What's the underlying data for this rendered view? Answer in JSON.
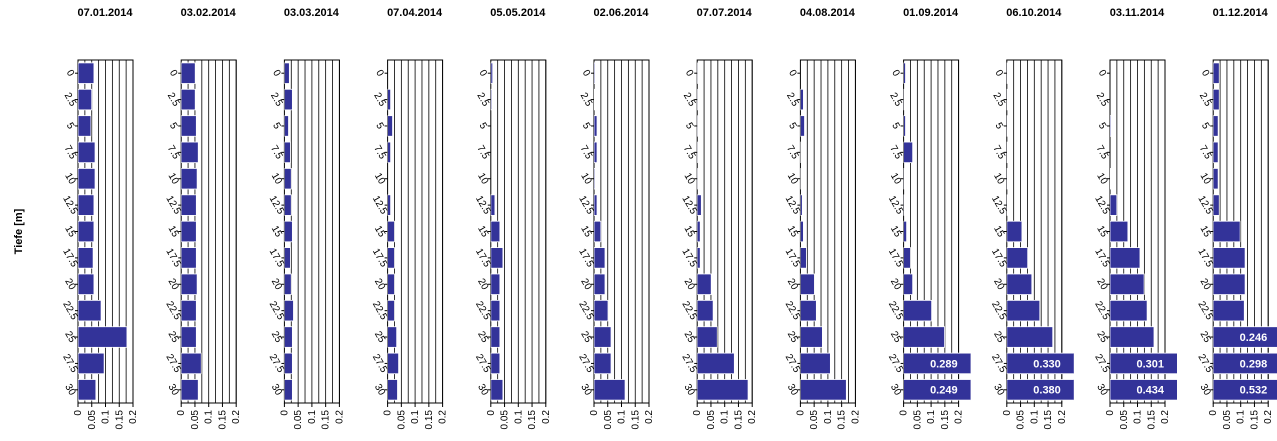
{
  "chart_data": [
    {
      "type": "hbar",
      "title": "07.01.2014",
      "y_label": "Tiefe [m]",
      "categories": [
        "0",
        "2.5",
        "5",
        "7.5",
        "10",
        "12.5",
        "15",
        "17.5",
        "20",
        "22.5",
        "25",
        "27.5",
        "30"
      ],
      "values": [
        0.058,
        0.05,
        0.047,
        0.062,
        0.062,
        0.058,
        0.058,
        0.055,
        0.058,
        0.084,
        0.178,
        0.095,
        0.065
      ],
      "value_labels": [
        null,
        null,
        null,
        null,
        null,
        null,
        null,
        null,
        null,
        null,
        null,
        null,
        null
      ],
      "color": "#333399",
      "xlim": [
        0,
        0.2
      ],
      "xticks": [
        0,
        0.05,
        0.1,
        0.15,
        0.2
      ],
      "xgrid": [
        0.025,
        0.05,
        0.075,
        0.1,
        0.125,
        0.15,
        0.175,
        0.2
      ]
    },
    {
      "type": "hbar",
      "title": "03.02.2014",
      "categories": [
        "0",
        "2.5",
        "5",
        "7.5",
        "10",
        "12.5",
        "15",
        "17.5",
        "20",
        "22.5",
        "25",
        "27.5",
        "30"
      ],
      "values": [
        0.051,
        0.051,
        0.055,
        0.062,
        0.058,
        0.055,
        0.055,
        0.055,
        0.058,
        0.055,
        0.055,
        0.073,
        0.062
      ],
      "value_labels": [
        null,
        null,
        null,
        null,
        null,
        null,
        null,
        null,
        null,
        null,
        null,
        null,
        null
      ],
      "color": "#333399",
      "xlim": [
        0,
        0.2
      ],
      "xticks": [
        0,
        0.05,
        0.1,
        0.15,
        0.2
      ],
      "xgrid": [
        0.025,
        0.05,
        0.075,
        0.1,
        0.125,
        0.15,
        0.175,
        0.2
      ]
    },
    {
      "type": "hbar",
      "title": "03.03.2014",
      "categories": [
        "0",
        "2.5",
        "5",
        "7.5",
        "10",
        "12.5",
        "15",
        "17.5",
        "20",
        "22.5",
        "25",
        "27.5",
        "30"
      ],
      "values": [
        0.018,
        0.029,
        0.015,
        0.022,
        0.025,
        0.025,
        0.029,
        0.022,
        0.025,
        0.033,
        0.029,
        0.029,
        0.029
      ],
      "value_labels": [
        null,
        null,
        null,
        null,
        null,
        null,
        null,
        null,
        null,
        null,
        null,
        null,
        null
      ],
      "color": "#333399",
      "xlim": [
        0,
        0.2
      ],
      "xticks": [
        0,
        0.05,
        0.1,
        0.15,
        0.2
      ],
      "xgrid": [
        0.025,
        0.05,
        0.075,
        0.1,
        0.125,
        0.15,
        0.175,
        0.2
      ]
    },
    {
      "type": "hbar",
      "title": "07.04.2014",
      "categories": [
        "0",
        "2.5",
        "5",
        "7.5",
        "10",
        "12.5",
        "15",
        "17.5",
        "20",
        "22.5",
        "25",
        "27.5",
        "30"
      ],
      "values": [
        0,
        0.011,
        0.018,
        0.011,
        0,
        0.011,
        0.025,
        0.025,
        0.025,
        0.025,
        0.033,
        0.04,
        0.036
      ],
      "value_labels": [
        null,
        null,
        null,
        null,
        null,
        null,
        null,
        null,
        null,
        null,
        null,
        null,
        null
      ],
      "color": "#333399",
      "xlim": [
        0,
        0.2
      ],
      "xticks": [
        0,
        0.05,
        0.1,
        0.15,
        0.2
      ],
      "xgrid": [
        0.025,
        0.05,
        0.075,
        0.1,
        0.125,
        0.15,
        0.175,
        0.2
      ]
    },
    {
      "type": "hbar",
      "title": "05.05.2014",
      "categories": [
        "0",
        "2.5",
        "5",
        "7.5",
        "10",
        "12.5",
        "15",
        "17.5",
        "20",
        "22.5",
        "25",
        "27.5",
        "30"
      ],
      "values": [
        0.007,
        0.004,
        0,
        0,
        0,
        0.015,
        0.033,
        0.044,
        0.033,
        0.033,
        0.033,
        0.033,
        0.044
      ],
      "value_labels": [
        null,
        null,
        null,
        null,
        null,
        null,
        null,
        null,
        null,
        null,
        null,
        null,
        null
      ],
      "color": "#333399",
      "xlim": [
        0,
        0.2
      ],
      "xticks": [
        0,
        0.05,
        0.1,
        0.15,
        0.2
      ],
      "xgrid": [
        0.025,
        0.05,
        0.075,
        0.1,
        0.125,
        0.15,
        0.175,
        0.2
      ]
    },
    {
      "type": "hbar",
      "title": "02.06.2014",
      "categories": [
        "0",
        "2.5",
        "5",
        "7.5",
        "10",
        "12.5",
        "15",
        "17.5",
        "20",
        "22.5",
        "25",
        "27.5",
        "30"
      ],
      "values": [
        0.004,
        0.002,
        0.011,
        0.011,
        0.004,
        0.011,
        0.025,
        0.04,
        0.04,
        0.051,
        0.062,
        0.062,
        0.113
      ],
      "value_labels": [
        null,
        null,
        null,
        null,
        null,
        null,
        null,
        null,
        null,
        null,
        null,
        null,
        null
      ],
      "color": "#333399",
      "xlim": [
        0,
        0.2
      ],
      "xticks": [
        0,
        0.05,
        0.1,
        0.15,
        0.2
      ],
      "xgrid": [
        0.025,
        0.05,
        0.075,
        0.1,
        0.125,
        0.15,
        0.175,
        0.2
      ]
    },
    {
      "type": "hbar",
      "title": "07.07.2014",
      "categories": [
        "0",
        "2.5",
        "5",
        "7.5",
        "10",
        "12.5",
        "15",
        "17.5",
        "20",
        "22.5",
        "25",
        "27.5",
        "30"
      ],
      "values": [
        0.002,
        0.002,
        0.002,
        0.002,
        0.002,
        0.015,
        0.011,
        0.011,
        0.051,
        0.058,
        0.073,
        0.135,
        0.185
      ],
      "value_labels": [
        null,
        null,
        null,
        null,
        null,
        null,
        null,
        null,
        null,
        null,
        null,
        null,
        null
      ],
      "color": "#333399",
      "xlim": [
        0,
        0.2
      ],
      "xticks": [
        0,
        0.05,
        0.1,
        0.15,
        0.2
      ],
      "xgrid": [
        0.025,
        0.05,
        0.075,
        0.1,
        0.125,
        0.15,
        0.175,
        0.2
      ]
    },
    {
      "type": "hbar",
      "title": "04.08.2014",
      "categories": [
        "0",
        "2.5",
        "5",
        "7.5",
        "10",
        "12.5",
        "15",
        "17.5",
        "20",
        "22.5",
        "25",
        "27.5",
        "30"
      ],
      "values": [
        0,
        0.011,
        0.015,
        0.002,
        0.002,
        0.007,
        0.011,
        0.022,
        0.051,
        0.058,
        0.08,
        0.109,
        0.167
      ],
      "value_labels": [
        null,
        null,
        null,
        null,
        null,
        null,
        null,
        null,
        null,
        null,
        null,
        null,
        null
      ],
      "color": "#333399",
      "xlim": [
        0,
        0.2
      ],
      "xticks": [
        0,
        0.05,
        0.1,
        0.15,
        0.2
      ],
      "xgrid": [
        0.025,
        0.05,
        0.075,
        0.1,
        0.125,
        0.15,
        0.175,
        0.2
      ]
    },
    {
      "type": "hbar",
      "title": "01.09.2014",
      "categories": [
        "0",
        "2.5",
        "5",
        "7.5",
        "10",
        "12.5",
        "15",
        "17.5",
        "20",
        "22.5",
        "25",
        "27.5",
        "30"
      ],
      "values": [
        0.007,
        0.002,
        0.007,
        0.033,
        0.002,
        0.002,
        0.011,
        0.025,
        0.033,
        0.102,
        0.149,
        0.289,
        0.249
      ],
      "value_labels": [
        null,
        null,
        null,
        null,
        null,
        null,
        null,
        null,
        null,
        null,
        null,
        "0.289",
        "0.249"
      ],
      "color": "#333399",
      "xlim": [
        0,
        0.2
      ],
      "xticks": [
        0,
        0.05,
        0.1,
        0.15,
        0.2
      ],
      "xgrid": [
        0.025,
        0.05,
        0.075,
        0.1,
        0.125,
        0.15,
        0.175,
        0.2
      ]
    },
    {
      "type": "hbar",
      "title": "06.10.2014",
      "categories": [
        "0",
        "2.5",
        "5",
        "7.5",
        "10",
        "12.5",
        "15",
        "17.5",
        "20",
        "22.5",
        "25",
        "27.5",
        "30"
      ],
      "values": [
        0.002,
        0.002,
        0.002,
        0.002,
        0.002,
        0.002,
        0.055,
        0.076,
        0.091,
        0.12,
        0.167,
        0.33,
        0.38
      ],
      "value_labels": [
        null,
        null,
        null,
        null,
        null,
        null,
        null,
        null,
        null,
        null,
        null,
        "0.330",
        "0.380"
      ],
      "color": "#333399",
      "xlim": [
        0,
        0.2
      ],
      "xticks": [
        0,
        0.05,
        0.1,
        0.15,
        0.2
      ],
      "xgrid": [
        0.025,
        0.05,
        0.075,
        0.1,
        0.125,
        0.15,
        0.175,
        0.2
      ]
    },
    {
      "type": "hbar",
      "title": "03.11.2014",
      "categories": [
        "0",
        "2.5",
        "5",
        "7.5",
        "10",
        "12.5",
        "15",
        "17.5",
        "20",
        "22.5",
        "25",
        "27.5",
        "30"
      ],
      "values": [
        0,
        0,
        0.004,
        0,
        0.002,
        0.025,
        0.065,
        0.109,
        0.124,
        0.135,
        0.16,
        0.301,
        0.434
      ],
      "value_labels": [
        null,
        null,
        null,
        null,
        null,
        null,
        null,
        null,
        null,
        null,
        null,
        "0.301",
        "0.434"
      ],
      "color": "#333399",
      "xlim": [
        0,
        0.2
      ],
      "xticks": [
        0,
        0.05,
        0.1,
        0.15,
        0.2
      ],
      "xgrid": [
        0.025,
        0.05,
        0.075,
        0.1,
        0.125,
        0.15,
        0.175,
        0.2
      ]
    },
    {
      "type": "hbar",
      "title": "01.12.2014",
      "categories": [
        "0",
        "2.5",
        "5",
        "7.5",
        "10",
        "12.5",
        "15",
        "17.5",
        "20",
        "22.5",
        "25",
        "27.5",
        "30"
      ],
      "values": [
        0.022,
        0.022,
        0.018,
        0.018,
        0.018,
        0.022,
        0.098,
        0.116,
        0.116,
        0.113,
        0.246,
        0.298,
        0.532
      ],
      "value_labels": [
        null,
        null,
        null,
        null,
        null,
        null,
        null,
        null,
        null,
        null,
        "0.246",
        "0.298",
        "0.532"
      ],
      "color": "#333399",
      "xlim": [
        0,
        0.2
      ],
      "xticks": [
        0,
        0.05,
        0.1,
        0.15,
        0.2
      ],
      "xgrid": [
        0.025,
        0.05,
        0.075,
        0.1,
        0.125,
        0.15,
        0.175,
        0.2
      ]
    }
  ]
}
